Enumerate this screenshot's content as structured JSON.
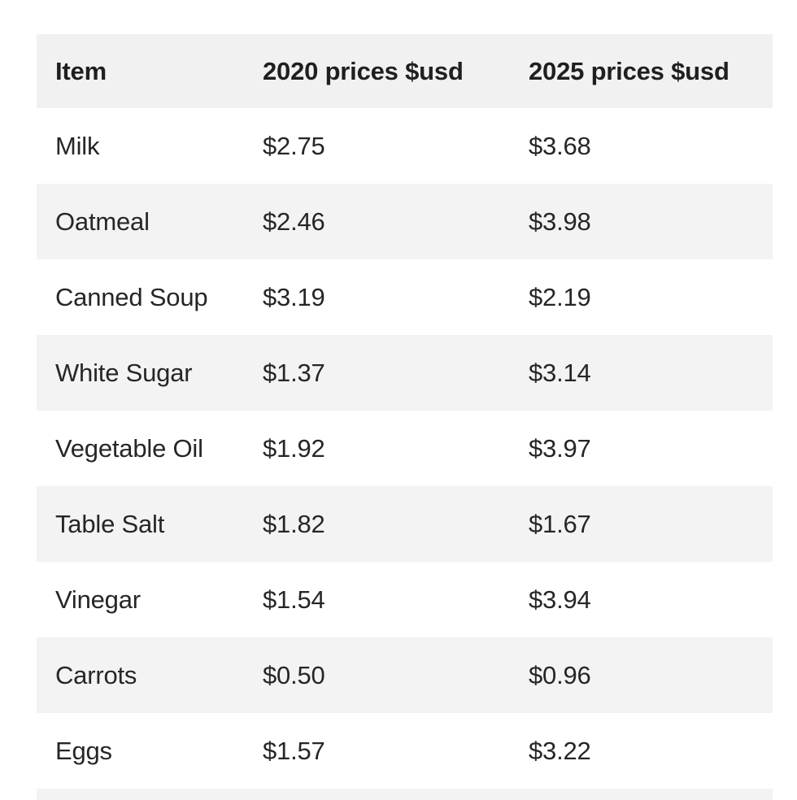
{
  "chart_data": {
    "type": "table",
    "title": "",
    "columns": [
      "Item",
      "2020 prices $usd",
      "2025 prices $usd"
    ],
    "rows": [
      [
        "Milk",
        "$2.75",
        "$3.68"
      ],
      [
        "Oatmeal",
        "$2.46",
        "$3.98"
      ],
      [
        "Canned Soup",
        "$3.19",
        "$2.19"
      ],
      [
        "White Sugar",
        "$1.37",
        "$3.14"
      ],
      [
        "Vegetable Oil",
        "$1.92",
        "$3.97"
      ],
      [
        "Table Salt",
        "$1.82",
        "$1.67"
      ],
      [
        "Vinegar",
        "$1.54",
        "$3.94"
      ],
      [
        "Carrots",
        "$0.50",
        "$0.96"
      ],
      [
        "Eggs",
        "$1.57",
        "$3.22"
      ]
    ],
    "layout": {
      "grid": false,
      "striped_rows": true,
      "partial_next_row_visible": true
    }
  },
  "colors": {
    "header_bg": "#f1f1f1",
    "stripe_bg": "#f3f3f3",
    "row_bg": "#ffffff",
    "text": "#262626",
    "header_text": "#1f1f1f"
  }
}
